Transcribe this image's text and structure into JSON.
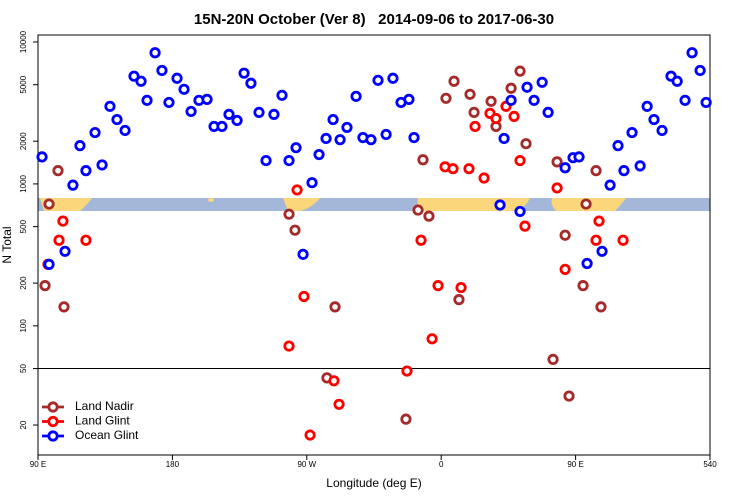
{
  "chart_data": {
    "type": "scatter",
    "title": "15N-20N October (Ver 8)   2014-09-06 to 2017-06-30",
    "x_label": "Longitude (deg E)",
    "y_label": "N Total",
    "yscale": "log",
    "xlim": [
      90,
      540
    ],
    "ylim": [
      12.3,
      11200
    ],
    "xticks": [
      {
        "value": 90,
        "label": "90 E"
      },
      180,
      {
        "value": 270,
        "label": "90 W"
      },
      {
        "value": 360,
        "label": "0"
      },
      {
        "value": 450,
        "label": "90 E"
      },
      540
    ],
    "yticks": [
      20,
      50,
      100,
      200,
      500,
      1000,
      2000,
      5000,
      10000
    ],
    "hline": 50,
    "legend": "bottom-left",
    "series": [
      {
        "name": "Land Nadir",
        "color": "#a52a2a",
        "x": [
          97.4,
          103.4,
          94.7,
          107.4,
          258.1,
          262.1,
          288.9,
          283.5,
          336.4,
          344.5,
          351.8,
          347.8,
          363.2,
          368.6,
          379.3,
          382.0,
          393.4,
          396.7,
          406.8,
          412.8,
          416.8,
          371.9,
          434.9,
          437.6,
          443.0,
          445.6,
          455.0,
          457.0,
          463.7,
          467.0
        ],
        "values": [
          721,
          1240,
          192,
          136,
          612,
          472,
          136,
          43,
          22,
          654,
          593,
          1480,
          4010,
          5290,
          4280,
          3190,
          3820,
          2540,
          4720,
          6230,
          1920,
          153,
          58,
          1430,
          435,
          32,
          192,
          721,
          1240,
          136
        ]
      },
      {
        "name": "Land Glint",
        "color": "#ff0000",
        "x": [
          96.7,
          104.1,
          106.7,
          122.1,
          263.5,
          258.1,
          268.1,
          288.2,
          291.6,
          272.2,
          337.1,
          346.5,
          353.9,
          357.9,
          362.6,
          367.9,
          373.3,
          378.6,
          382.7,
          388.7,
          392.7,
          396.7,
          403.4,
          408.8,
          412.8,
          416.1,
          437.6,
          443.0,
          463.7,
          465.7,
          481.8
        ],
        "values": [
          271,
          401,
          547,
          401,
          907,
          72,
          161,
          41,
          28,
          17,
          48,
          401,
          81,
          192,
          1320,
          1280,
          186,
          1280,
          2540,
          1100,
          3140,
          2890,
          3520,
          2990,
          1460,
          504,
          937,
          250,
          401,
          547,
          401
        ]
      },
      {
        "name": "Ocean Glint",
        "color": "#0000ff",
        "x": [
          92.7,
          97.4,
          108.1,
          113.4,
          118.1,
          122.1,
          128.2,
          132.9,
          138.2,
          142.9,
          148.3,
          154.3,
          159.0,
          163.0,
          168.4,
          173.0,
          177.7,
          183.1,
          187.8,
          192.5,
          197.8,
          203.2,
          207.9,
          213.2,
          217.9,
          223.3,
          228.0,
          232.6,
          238.0,
          242.7,
          248.0,
          253.4,
          258.1,
          262.8,
          267.5,
          273.5,
          278.2,
          282.9,
          287.6,
          292.3,
          296.9,
          303.0,
          307.6,
          313.0,
          317.7,
          323.1,
          327.7,
          333.1,
          338.4,
          341.8,
          399.4,
          402.1,
          406.8,
          412.8,
          417.5,
          422.2,
          427.6,
          431.6,
          443.0,
          448.3,
          452.3,
          457.7,
          467.7,
          473.1,
          478.4,
          482.4,
          487.8,
          493.2,
          497.9,
          502.5,
          507.9,
          513.9,
          518.0,
          523.3,
          528.0,
          533.4,
          537.4
        ],
        "values": [
          1550,
          271,
          335,
          980,
          1860,
          1240,
          2300,
          1360,
          3520,
          2840,
          2380,
          5740,
          5290,
          3880,
          8400,
          6300,
          3750,
          5550,
          4640,
          3240,
          3880,
          3940,
          2540,
          2540,
          3090,
          2800,
          6030,
          5120,
          3190,
          1460,
          3090,
          4210,
          1460,
          1800,
          319,
          1020,
          1610,
          2090,
          2840,
          2050,
          2500,
          4140,
          2120,
          2050,
          5370,
          2230,
          5550,
          3750,
          3940,
          2120,
          710,
          2090,
          3880,
          640,
          4800,
          3880,
          5200,
          3190,
          1300,
          1530,
          1550,
          275,
          335,
          980,
          1860,
          1240,
          2300,
          1340,
          3520,
          2840,
          2380,
          5740,
          5290,
          3880,
          8400,
          6300,
          3750
        ]
      }
    ]
  }
}
